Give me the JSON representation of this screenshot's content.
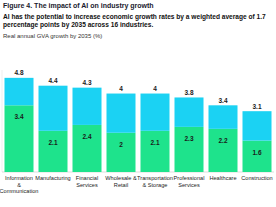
{
  "chart_data": {
    "type": "bar",
    "title": "Figure 4. The impact of AI on industry growth",
    "subtitle": "AI has the potential to increase economic growth rates by a weighted average of 1.7 percentage points by 2035 across 16 industries.",
    "y_label": "Real annual GVA growth by 2035 (%)",
    "categories": [
      "Information & Communication",
      "Manufacturing",
      "Financial Services",
      "Wholesale & Retail",
      "Transportation & Storage",
      "Professional Services",
      "Healthcare",
      "Construction"
    ],
    "series": [
      {
        "color": "#1ee38c",
        "values": [
          3.4,
          2.1,
          2.4,
          2.0,
          2.1,
          2.3,
          2.2,
          1.6
        ]
      },
      {
        "color": "#1bd2f3",
        "values": [
          1.4,
          2.3,
          1.9,
          2.0,
          1.9,
          1.5,
          1.2,
          1.5
        ]
      }
    ],
    "totals": [
      4.8,
      4.4,
      4.3,
      4.0,
      4.0,
      3.8,
      3.4,
      3.1
    ],
    "stacked": true,
    "data_labels": true,
    "tick_labels": "x",
    "ylim": [
      0,
      5.2
    ]
  }
}
